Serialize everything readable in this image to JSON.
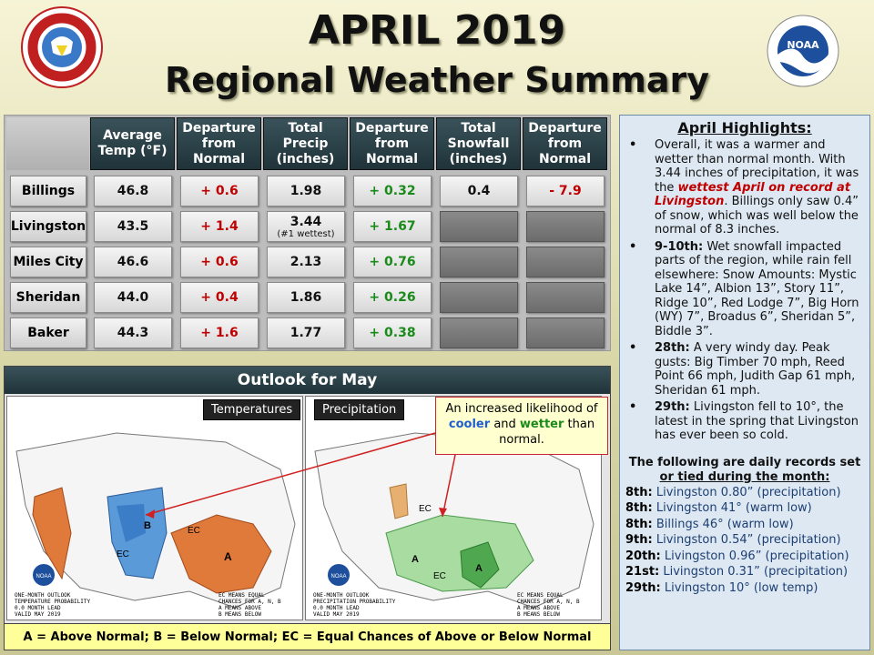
{
  "header": {
    "title": "APRIL 2019",
    "subtitle": "Regional Weather Summary",
    "logo_left_text": "NATIONAL WEATHER SERVICE",
    "logo_right_text": "NOAA",
    "logo_right_ring": "NATIONAL OCEANIC AND ATMOSPHERIC ADMINISTRATION • U.S. DEPARTMENT OF COMMERCE"
  },
  "table": {
    "columns": [
      "Average Temp (°F)",
      "Departure from Normal",
      "Total Precip (inches)",
      "Departure from Normal",
      "Total Snowfall (inches)",
      "Departure from Normal"
    ],
    "rows": [
      {
        "city": "Billings",
        "temp": "46.8",
        "temp_dep": "+ 0.6",
        "precip": "1.98",
        "precip_note": "",
        "precip_dep": "+ 0.32",
        "snow": "0.4",
        "snow_dep": "- 7.9"
      },
      {
        "city": "Livingston",
        "temp": "43.5",
        "temp_dep": "+ 1.4",
        "precip": "3.44",
        "precip_note": "(#1 wettest)",
        "precip_dep": "+ 1.67",
        "snow": "",
        "snow_dep": ""
      },
      {
        "city": "Miles City",
        "temp": "46.6",
        "temp_dep": "+ 0.6",
        "precip": "2.13",
        "precip_note": "",
        "precip_dep": "+ 0.76",
        "snow": "",
        "snow_dep": ""
      },
      {
        "city": "Sheridan",
        "temp": "44.0",
        "temp_dep": "+ 0.4",
        "precip": "1.86",
        "precip_note": "",
        "precip_dep": "+ 0.26",
        "snow": "",
        "snow_dep": ""
      },
      {
        "city": "Baker",
        "temp": "44.3",
        "temp_dep": "+ 1.6",
        "precip": "1.77",
        "precip_note": "",
        "precip_dep": "+ 0.38",
        "snow": "",
        "snow_dep": ""
      }
    ]
  },
  "outlook": {
    "title": "Outlook for May",
    "temp_label": "Temperatures",
    "precip_label": "Precipitation",
    "callout_pre": "An increased likelihood of",
    "callout_cool": "cooler",
    "callout_and": "and",
    "callout_wet": "wetter",
    "callout_post": "than normal.",
    "temp_map_caption": [
      "ONE-MONTH OUTLOOK",
      "TEMPERATURE PROBABILITY",
      "0.0 MONTH LEAD",
      "VALID MAY 2019",
      "MADE 20 APR 2019"
    ],
    "precip_map_caption": [
      "ONE-MONTH OUTLOOK",
      "PRECIPITATION PROBABILITY",
      "0.0 MONTH LEAD",
      "VALID MAY 2019",
      "MADE 20 APR 2019"
    ],
    "map_ec_note": [
      "EC MEANS EQUAL",
      "CHANCES FOR A, N, B",
      "A MEANS ABOVE",
      "N MEANS NORMAL",
      "B MEANS BELOW"
    ],
    "legend": "A = Above Normal;  B = Below Normal;  EC = Equal Chances of Above or Below Normal",
    "colors": {
      "above_temp": "#e07a3a",
      "below_temp": "#5a9ad8",
      "wet": "#6cbf6a",
      "dry": "#e8b070"
    }
  },
  "highlights": {
    "title": "April Highlights:",
    "b1_a": "Overall, it was a warmer and wetter than normal month. With 3.44 inches of precipitation, it was the ",
    "b1_red": "wettest April on record at Livingston",
    "b1_b": ". Billings only saw 0.4” of snow, which was well below the normal of 8.3 inches.",
    "b2_date": "9-10th:",
    "b2_text": " Wet snowfall impacted parts of the region, while rain fell elsewhere:  Snow Amounts: Mystic Lake 14”, Albion 13”, Story 11”, Ridge 10”, Red Lodge 7”, Big Horn (WY) 7”, Broadus 6”, Sheridan 5”, Biddle 3”.",
    "b3_date": "28th:",
    "b3_text": "  A very windy day. Peak gusts: Big Timber 70 mph, Reed Point 66 mph, Judith Gap 61 mph, Sheridan 61 mph.",
    "b4_date": "29th:",
    "b4_text": "  Livingston fell to 10°, the latest in the spring that Livingston has ever been so cold.",
    "records_title_a": "The following are daily records set",
    "records_title_b": "or tied during the month:",
    "records": [
      {
        "date": "8th:",
        "text": "  Livingston 0.80” (precipitation)"
      },
      {
        "date": "8th:",
        "text": "  Livingston 41° (warm low)"
      },
      {
        "date": "8th:",
        "text": "  Billings 46° (warm low)"
      },
      {
        "date": "9th:",
        "text": "  Livingston 0.54” (precipitation)"
      },
      {
        "date": "20th:",
        "text": "  Livingston 0.96” (precipitation)"
      },
      {
        "date": "21st:",
        "text": "  Livingston 0.31” (precipitation)"
      },
      {
        "date": "29th:",
        "text": "  Livingston 10° (low temp)"
      }
    ]
  }
}
